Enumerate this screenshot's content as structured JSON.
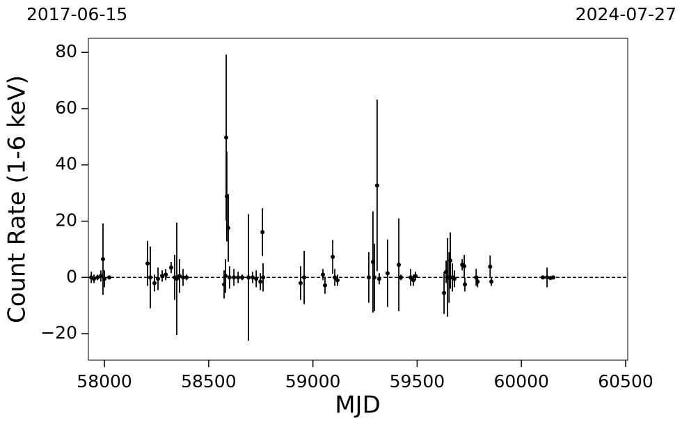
{
  "chart_data": {
    "type": "errorbar_scatter",
    "annotations": [
      "2017-06-15",
      "2024-07-27"
    ],
    "xlabel": "MJD",
    "ylabel": "Count Rate (1-6 keV)",
    "color": "#000000",
    "hline": 0,
    "xlim": [
      57923,
      60510
    ],
    "ylim": [
      -29.4,
      85
    ],
    "xticks": [
      58000,
      58500,
      59000,
      59500,
      60000,
      60500
    ],
    "yticks": [
      {
        "value": -20,
        "label": "−20"
      },
      0,
      20,
      40,
      60,
      80
    ],
    "x": [
      57937,
      57950,
      57967,
      57983,
      57993,
      58000,
      58023,
      58207,
      58220,
      58240,
      58257,
      58277,
      58294,
      58320,
      58337,
      58347,
      58360,
      58377,
      58394,
      58574,
      58581,
      58584,
      58587,
      58594,
      58600,
      58621,
      58641,
      58661,
      58691,
      58711,
      58728,
      58748,
      58758,
      58761,
      58941,
      58958,
      59048,
      59058,
      59095,
      59105,
      59118,
      59268,
      59288,
      59295,
      59308,
      59318,
      59358,
      59412,
      59422,
      59469,
      59482,
      59492,
      59629,
      59639,
      59646,
      59653,
      59659,
      59669,
      59679,
      59716,
      59726,
      59729,
      59783,
      59790,
      59850,
      59856,
      60103,
      60123,
      60140,
      60153
    ],
    "values": [
      0,
      -0.5,
      0,
      0.5,
      6.5,
      -0.5,
      0,
      5,
      0,
      -2,
      -0.5,
      0.5,
      1,
      3.5,
      0,
      -0.5,
      0.5,
      0,
      0,
      -2.5,
      0.5,
      49.7,
      28.8,
      17.6,
      0,
      0,
      0,
      0,
      0,
      0,
      -0.5,
      -1.5,
      16.1,
      0,
      -2,
      0,
      1,
      -2.8,
      7.3,
      0,
      -1,
      0,
      5.5,
      0,
      32.7,
      -0.5,
      1.5,
      4.5,
      0,
      0,
      -1,
      0.5,
      -5.5,
      2,
      0,
      0,
      6,
      0,
      -0.5,
      4.5,
      4,
      -2.5,
      0,
      -1.5,
      3.8,
      -1.5,
      0,
      0,
      -0.2,
      0
    ],
    "errors": [
      2,
      1.5,
      1,
      2,
      12.7,
      3,
      0.5,
      8,
      11,
      3,
      4,
      2,
      2,
      2,
      8,
      20,
      6,
      3,
      1,
      5,
      6,
      29.5,
      16,
      12,
      4,
      3,
      2,
      1,
      22.5,
      2,
      3,
      3,
      8.5,
      5,
      6,
      9.5,
      2,
      3,
      6,
      3,
      2,
      9,
      18,
      12,
      30.5,
      2,
      12,
      16.5,
      1,
      3,
      2,
      1.5,
      7.5,
      4,
      14,
      9,
      10,
      5,
      3,
      2,
      4,
      2.5,
      3,
      2,
      4,
      1.5,
      0.3,
      3.5,
      0.5,
      0.5
    ]
  }
}
